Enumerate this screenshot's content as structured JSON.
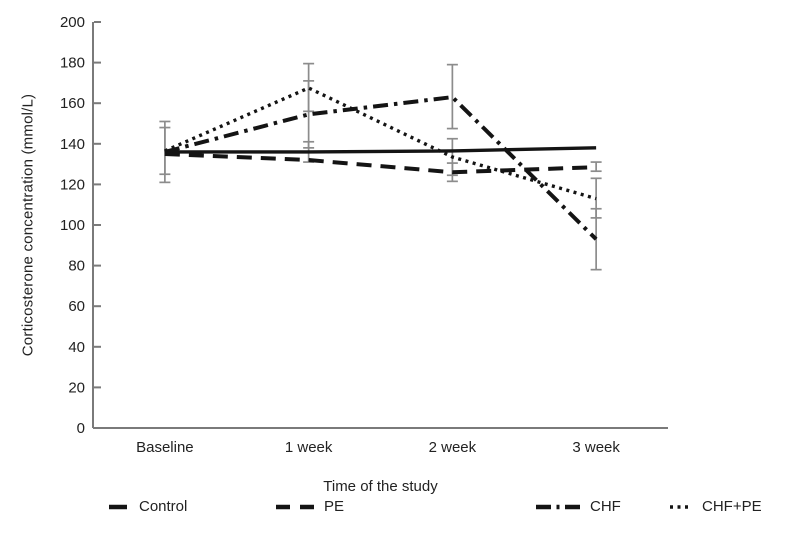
{
  "figure": {
    "background": "#ffffff",
    "axis_color": "#7a7a7a",
    "line_color": "#141414",
    "error_bar_color": "#8c8c8c",
    "text_color": "#222222"
  },
  "chart_data": {
    "type": "line",
    "title": "",
    "xlabel": "Time of the study",
    "ylabel": "Corticosterone concentration (mmol/L)",
    "categories": [
      "Baseline",
      "1 week",
      "2 week",
      "3 week"
    ],
    "ylim": [
      0,
      200
    ],
    "ytick_step": 20,
    "ytick_labels": [
      "0",
      "20",
      "40",
      "60",
      "80",
      "100",
      "120",
      "140",
      "160",
      "180",
      "200"
    ],
    "grid": false,
    "legend_position": "bottom",
    "series": [
      {
        "name": "Control",
        "style": "solid",
        "values": [
          136.0,
          136.0,
          136.5,
          138.0
        ]
      },
      {
        "name": "PE",
        "style": "dashed",
        "values": [
          135.0,
          132.0,
          126.0,
          128.5
        ]
      },
      {
        "name": "CHF",
        "style": "dashdot",
        "values": [
          136.0,
          154.5,
          163.0,
          93.0
        ]
      },
      {
        "name": "CHF+PE",
        "style": "dotted",
        "values": [
          136.5,
          167.5,
          133.5,
          113.0
        ]
      }
    ],
    "error_bars": [
      {
        "category": "Baseline",
        "series": "Control",
        "value": 136.0,
        "low": 121.0,
        "high": 151.0
      },
      {
        "category": "Baseline",
        "series": "CHF+PE",
        "value": 136.5,
        "low": 125.0,
        "high": 148.0
      },
      {
        "category": "1 week",
        "series": "CHF+PE",
        "value": 167.5,
        "low": 156.0,
        "high": 179.5
      },
      {
        "category": "1 week",
        "series": "CHF",
        "value": 154.5,
        "low": 138.0,
        "high": 171.0
      },
      {
        "category": "1 week",
        "series": "Control",
        "value": 136.0,
        "low": 131.0,
        "high": 141.0
      },
      {
        "category": "2 week",
        "series": "CHF",
        "value": 163.0,
        "low": 147.5,
        "high": 179.0
      },
      {
        "category": "2 week",
        "series": "CHF+PE",
        "value": 133.5,
        "low": 124.5,
        "high": 142.5
      },
      {
        "category": "2 week",
        "series": "PE",
        "value": 126.0,
        "low": 121.5,
        "high": 130.5
      },
      {
        "category": "3 week",
        "series": "PE",
        "value": 128.5,
        "low": 126.5,
        "high": 131.0
      },
      {
        "category": "3 week",
        "series": "CHF+PE",
        "value": 113.0,
        "low": 103.5,
        "high": 123.0
      },
      {
        "category": "3 week",
        "series": "CHF",
        "value": 93.0,
        "low": 78.0,
        "high": 108.0
      }
    ]
  },
  "legend": {
    "items": [
      {
        "label": "Control",
        "style": "solid"
      },
      {
        "label": "PE",
        "style": "dashed"
      },
      {
        "label": "CHF",
        "style": "dashdot"
      },
      {
        "label": "CHF+PE",
        "style": "dotted"
      }
    ]
  }
}
